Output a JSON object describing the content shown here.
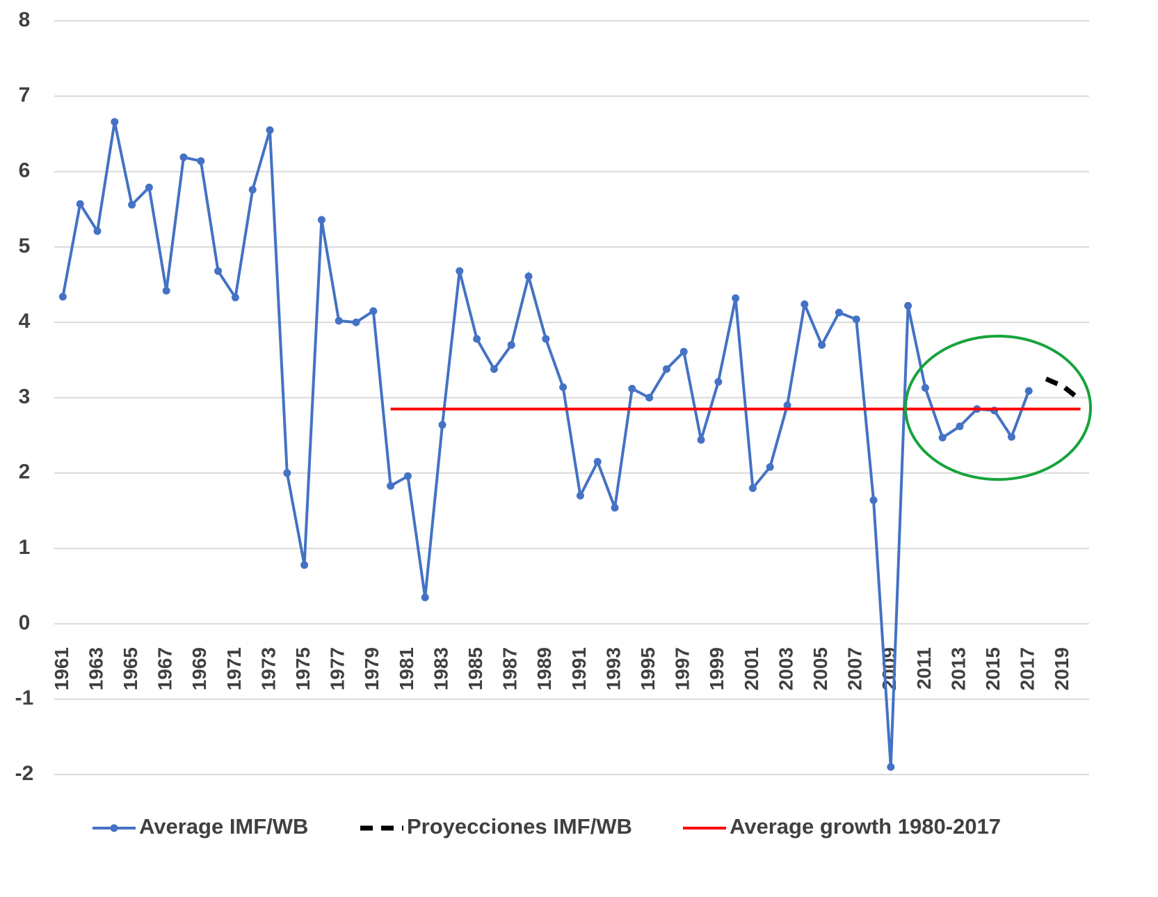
{
  "chart_data": {
    "type": "line",
    "x": [
      1961,
      1962,
      1963,
      1964,
      1965,
      1966,
      1967,
      1968,
      1969,
      1970,
      1971,
      1972,
      1973,
      1974,
      1975,
      1976,
      1977,
      1978,
      1979,
      1980,
      1981,
      1982,
      1983,
      1984,
      1985,
      1986,
      1987,
      1988,
      1989,
      1990,
      1991,
      1992,
      1993,
      1994,
      1995,
      1996,
      1997,
      1998,
      1999,
      2000,
      2001,
      2002,
      2003,
      2004,
      2005,
      2006,
      2007,
      2008,
      2009,
      2010,
      2011,
      2012,
      2013,
      2014,
      2015,
      2016,
      2017,
      2018,
      2019,
      2020
    ],
    "series": [
      {
        "name": "Average IMF/WB",
        "color": "#4472c4",
        "marker": true,
        "dash": false,
        "values": [
          4.34,
          5.57,
          5.21,
          6.66,
          5.56,
          5.79,
          4.42,
          6.19,
          6.14,
          4.68,
          4.33,
          5.76,
          6.55,
          2.0,
          0.78,
          5.36,
          4.02,
          4.0,
          4.15,
          1.83,
          1.96,
          0.35,
          2.64,
          4.68,
          3.78,
          3.38,
          3.7,
          4.61,
          3.78,
          3.14,
          1.7,
          2.15,
          1.54,
          3.12,
          3.0,
          3.38,
          3.61,
          2.44,
          3.21,
          4.32,
          1.8,
          2.08,
          2.9,
          4.24,
          3.7,
          4.13,
          4.04,
          1.64,
          -1.9,
          4.22,
          3.13,
          2.47,
          2.62,
          2.85,
          2.83,
          2.48,
          3.09,
          null,
          null,
          null
        ]
      },
      {
        "name": "Proyecciones IMF/WB",
        "color": "#000000",
        "marker": false,
        "dash": true,
        "values": [
          null,
          null,
          null,
          null,
          null,
          null,
          null,
          null,
          null,
          null,
          null,
          null,
          null,
          null,
          null,
          null,
          null,
          null,
          null,
          null,
          null,
          null,
          null,
          null,
          null,
          null,
          null,
          null,
          null,
          null,
          null,
          null,
          null,
          null,
          null,
          null,
          null,
          null,
          null,
          null,
          null,
          null,
          null,
          null,
          null,
          null,
          null,
          null,
          null,
          null,
          null,
          null,
          null,
          null,
          null,
          null,
          null,
          3.25,
          3.15,
          2.97
        ]
      },
      {
        "name": "Average growth 1980-2017",
        "color": "#ff0000",
        "marker": false,
        "dash": false,
        "values": [
          null,
          null,
          null,
          null,
          null,
          null,
          null,
          null,
          null,
          null,
          null,
          null,
          null,
          null,
          null,
          null,
          null,
          null,
          null,
          2.85,
          2.85,
          2.85,
          2.85,
          2.85,
          2.85,
          2.85,
          2.85,
          2.85,
          2.85,
          2.85,
          2.85,
          2.85,
          2.85,
          2.85,
          2.85,
          2.85,
          2.85,
          2.85,
          2.85,
          2.85,
          2.85,
          2.85,
          2.85,
          2.85,
          2.85,
          2.85,
          2.85,
          2.85,
          2.85,
          2.85,
          2.85,
          2.85,
          2.85,
          2.85,
          2.85,
          2.85,
          2.85,
          2.85,
          2.85,
          2.85
        ]
      }
    ],
    "xlim": [
      1960.5,
      2020.5
    ],
    "xticks": [
      1961,
      1963,
      1965,
      1967,
      1969,
      1971,
      1973,
      1975,
      1977,
      1979,
      1981,
      1983,
      1985,
      1987,
      1989,
      1991,
      1993,
      1995,
      1997,
      1999,
      2001,
      2003,
      2005,
      2007,
      2009,
      2011,
      2013,
      2015,
      2017,
      2019
    ],
    "ylim": [
      -2,
      8
    ],
    "yticks": [
      -2,
      -1,
      0,
      1,
      2,
      3,
      4,
      5,
      6,
      7,
      8
    ],
    "grid": true,
    "legend": "bottom"
  }
}
